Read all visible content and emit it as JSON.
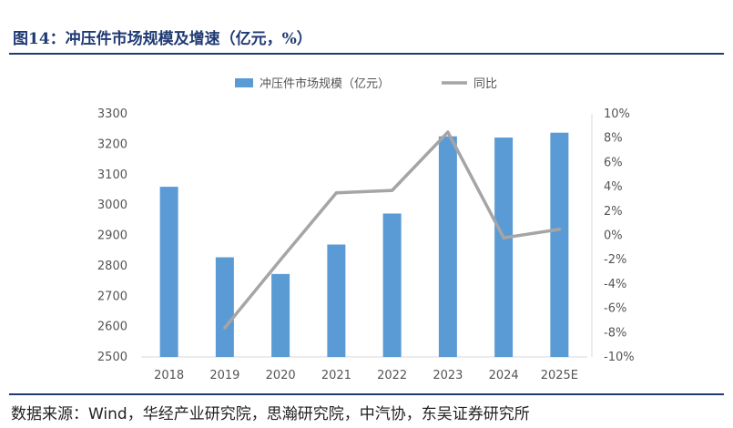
{
  "figure_title": "图14：冲压件市场规模及增速（亿元，%）",
  "source_text": "数据来源：Wind，华经产业研究院，思瀚研究院，中汽协，东吴证券研究所",
  "chart_data": {
    "type": "bar",
    "categories": [
      "2018",
      "2019",
      "2020",
      "2021",
      "2022",
      "2023",
      "2024",
      "2025E"
    ],
    "series": [
      {
        "name": "冲压件市场规模（亿元）",
        "kind": "bar",
        "axis": "left",
        "color": "#5b9bd5",
        "values": [
          3060,
          2828,
          2773,
          2870,
          2972,
          3226,
          3222,
          3238
        ]
      },
      {
        "name": "同比",
        "kind": "line",
        "axis": "right",
        "color": "#a5a5a5",
        "values": [
          null,
          -7.6,
          -2.0,
          3.5,
          3.7,
          8.5,
          -0.2,
          0.5
        ]
      }
    ],
    "ylim_left": [
      2500,
      3300
    ],
    "yticks_left": [
      2500,
      2600,
      2700,
      2800,
      2900,
      3000,
      3100,
      3200,
      3300
    ],
    "ylim_right": [
      -10,
      10
    ],
    "yticks_right": [
      "-10%",
      "-8%",
      "-6%",
      "-4%",
      "-2%",
      "0%",
      "2%",
      "4%",
      "6%",
      "8%",
      "10%"
    ],
    "legend_position": "top-center",
    "grid": false
  }
}
